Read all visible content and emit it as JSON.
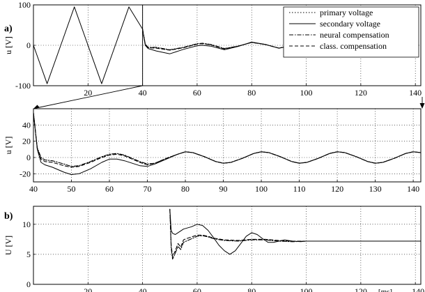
{
  "chart_data": [
    {
      "panel": "a) top",
      "type": "line",
      "panel_label": "a)",
      "ylabel": "u [V]",
      "xlim": [
        0,
        142
      ],
      "ylim": [
        -100,
        100
      ],
      "x_ticks": [
        "20",
        "40",
        "60",
        "80",
        "100",
        "120",
        "140"
      ],
      "y_ticks": [
        "-100",
        "0",
        "100"
      ],
      "grid": true,
      "legend_position": "top-right",
      "series": [
        {
          "name": "primary voltage",
          "style": "dotted"
        },
        {
          "name": "secondary voltage",
          "style": "solid"
        },
        {
          "name": "neural compensation",
          "style": "dash-dot"
        },
        {
          "name": "class. compensation",
          "style": "dashed"
        }
      ],
      "curves": {
        "secondary voltage": {
          "x": [
            0,
            5,
            10,
            15,
            20,
            25,
            30,
            35,
            40,
            41,
            42,
            45,
            50,
            55,
            60,
            62,
            65,
            70,
            75,
            80,
            85,
            90,
            95,
            100,
            105,
            110,
            115,
            120,
            125,
            130,
            135,
            140
          ],
          "y": [
            0,
            -95,
            0,
            95,
            0,
            -95,
            0,
            95,
            40,
            0,
            -8,
            -14,
            -21,
            -10,
            -1,
            0,
            -2,
            -11,
            -3,
            8,
            2,
            -7,
            0,
            7,
            0,
            -8,
            0,
            7,
            0,
            -7,
            0,
            7
          ]
        },
        "neural compensation": {
          "x": [
            0,
            5,
            10,
            15,
            20,
            25,
            30,
            35,
            40,
            41,
            42,
            45,
            50,
            55,
            60,
            62,
            65,
            70,
            75,
            80,
            85,
            90,
            95,
            100,
            105,
            110,
            115,
            120,
            125,
            130,
            135,
            140
          ],
          "y": [
            0,
            -95,
            0,
            95,
            0,
            -95,
            0,
            95,
            40,
            3,
            -5,
            -5,
            -11,
            -5,
            4,
            5,
            2,
            -8,
            -2,
            7,
            2,
            -7,
            0,
            7,
            0,
            -8,
            0,
            7,
            0,
            -7,
            0,
            7
          ]
        },
        "class. compensation": {
          "x": [
            0,
            5,
            10,
            15,
            20,
            25,
            30,
            35,
            40,
            41,
            42,
            45,
            50,
            55,
            60,
            62,
            65,
            70,
            75,
            80,
            85,
            90,
            95,
            100,
            105,
            110,
            115,
            120,
            125,
            130,
            135,
            140
          ],
          "y": [
            0,
            -95,
            0,
            95,
            0,
            -95,
            0,
            95,
            40,
            2,
            -6,
            -7,
            -12,
            -6,
            3,
            4,
            1,
            -9,
            -2,
            7,
            2,
            -7,
            0,
            7,
            0,
            -8,
            0,
            7,
            0,
            -7,
            0,
            7
          ]
        }
      }
    },
    {
      "panel": "a) zoom",
      "type": "line",
      "ylabel": "u [V]",
      "xlim": [
        40,
        142
      ],
      "ylim": [
        -30,
        60
      ],
      "x_ticks": [
        "40",
        "50",
        "60",
        "70",
        "80",
        "90",
        "100",
        "110",
        "120",
        "130",
        "140"
      ],
      "y_ticks": [
        "-20",
        "0",
        "20",
        "40"
      ],
      "grid": true,
      "curves": {
        "secondary voltage": {
          "x": [
            40,
            41,
            42,
            43,
            45,
            48,
            50,
            52,
            55,
            58,
            60,
            62,
            64,
            66,
            68,
            70,
            72,
            75,
            78,
            80,
            82,
            85,
            88,
            90,
            92,
            95,
            98,
            100,
            102,
            105,
            108,
            110,
            112,
            115,
            118,
            120,
            122,
            125,
            128,
            130,
            132,
            135,
            138,
            140,
            142
          ],
          "y": [
            55,
            10,
            -6,
            -9,
            -12,
            -18,
            -21,
            -20,
            -14,
            -6,
            -2,
            -2,
            -4,
            -7,
            -10,
            -11,
            -8,
            -2,
            4,
            7,
            6,
            1,
            -5,
            -7,
            -6,
            -1,
            5,
            7,
            6,
            1,
            -5,
            -7,
            -6,
            -1,
            5,
            7,
            6,
            1,
            -5,
            -7,
            -6,
            -1,
            5,
            7,
            6
          ]
        },
        "neural compensation": {
          "x": [
            40,
            41,
            42,
            43,
            45,
            48,
            50,
            52,
            55,
            58,
            60,
            62,
            64,
            66,
            68,
            70,
            72,
            75,
            78,
            80,
            82,
            85,
            88,
            90,
            92,
            95,
            98,
            100,
            102,
            105,
            108,
            110,
            112,
            115,
            118,
            120,
            122,
            125,
            128,
            130,
            132,
            135,
            138,
            140,
            142
          ],
          "y": [
            55,
            12,
            0,
            -3,
            -4,
            -8,
            -11,
            -10,
            -5,
            1,
            4,
            5,
            3,
            -1,
            -5,
            -8,
            -7,
            -1,
            4,
            7,
            6,
            1,
            -5,
            -7,
            -6,
            -1,
            5,
            7,
            6,
            1,
            -5,
            -7,
            -6,
            -1,
            5,
            7,
            6,
            1,
            -5,
            -7,
            -6,
            -1,
            5,
            7,
            6
          ]
        },
        "class. compensation": {
          "x": [
            40,
            41,
            42,
            43,
            45,
            48,
            50,
            52,
            55,
            58,
            60,
            62,
            64,
            66,
            68,
            70,
            72,
            75,
            78,
            80,
            82,
            85,
            88,
            90,
            92,
            95,
            98,
            100,
            102,
            105,
            108,
            110,
            112,
            115,
            118,
            120,
            122,
            125,
            128,
            130,
            132,
            135,
            138,
            140,
            142
          ],
          "y": [
            55,
            11,
            -2,
            -5,
            -6,
            -10,
            -12,
            -11,
            -6,
            0,
            3,
            4,
            2,
            -2,
            -6,
            -9,
            -7,
            -1,
            4,
            7,
            6,
            1,
            -5,
            -7,
            -6,
            -1,
            5,
            7,
            6,
            1,
            -5,
            -7,
            -6,
            -1,
            5,
            7,
            6,
            1,
            -5,
            -7,
            -6,
            -1,
            5,
            7,
            6
          ]
        }
      }
    },
    {
      "panel": "b)",
      "type": "line",
      "panel_label": "b)",
      "ylabel": "U [V]",
      "x_unit_label": "[ms]",
      "xlim": [
        0,
        142
      ],
      "ylim": [
        0,
        13
      ],
      "x_ticks": [
        "20",
        "40",
        "60",
        "80",
        "100",
        "120",
        "140"
      ],
      "y_ticks": [
        "0",
        "5",
        "10"
      ],
      "grid": true,
      "curves": {
        "secondary voltage": {
          "x": [
            50,
            50.5,
            51,
            52,
            53,
            55,
            58,
            60,
            62,
            64,
            66,
            68,
            70,
            72,
            74,
            76,
            78,
            80,
            82,
            84,
            86,
            88,
            90,
            92,
            95,
            98,
            100,
            110,
            120,
            130,
            140,
            142
          ],
          "y": [
            12.5,
            9,
            8.5,
            8.3,
            8.6,
            9.2,
            9.6,
            10,
            9.8,
            9,
            7.8,
            6.5,
            5.6,
            5,
            5.6,
            6.8,
            8,
            8.6,
            8.3,
            7.6,
            7,
            7,
            7.2,
            7.4,
            7.2,
            7.1,
            7.2,
            7.2,
            7.2,
            7.2,
            7.2,
            7.2
          ]
        },
        "neural compensation": {
          "x": [
            50,
            50.5,
            51,
            52,
            53,
            54,
            55,
            56,
            58,
            60,
            62,
            64,
            66,
            70,
            75,
            80,
            85,
            90,
            95,
            100,
            110,
            120,
            130,
            140,
            142
          ],
          "y": [
            12.5,
            6,
            4.2,
            5.2,
            6.3,
            5.8,
            7,
            7.2,
            7.6,
            8,
            8.1,
            7.9,
            7.6,
            7.3,
            7.2,
            7.4,
            7.4,
            7.2,
            7.1,
            7.2,
            7.2,
            7.2,
            7.2,
            7.2,
            7.2
          ]
        },
        "class. compensation": {
          "x": [
            50,
            50.5,
            51,
            52,
            53,
            54,
            55,
            56,
            58,
            60,
            62,
            64,
            66,
            70,
            75,
            80,
            85,
            90,
            95,
            100,
            110,
            120,
            130,
            140,
            142
          ],
          "y": [
            12.5,
            6.5,
            4.6,
            5.6,
            6.8,
            6.2,
            7.4,
            7.6,
            7.9,
            8.2,
            8.2,
            8,
            7.7,
            7.4,
            7.3,
            7.5,
            7.5,
            7.3,
            7.2,
            7.2,
            7.2,
            7.2,
            7.2,
            7.2,
            7.2
          ]
        }
      }
    }
  ]
}
